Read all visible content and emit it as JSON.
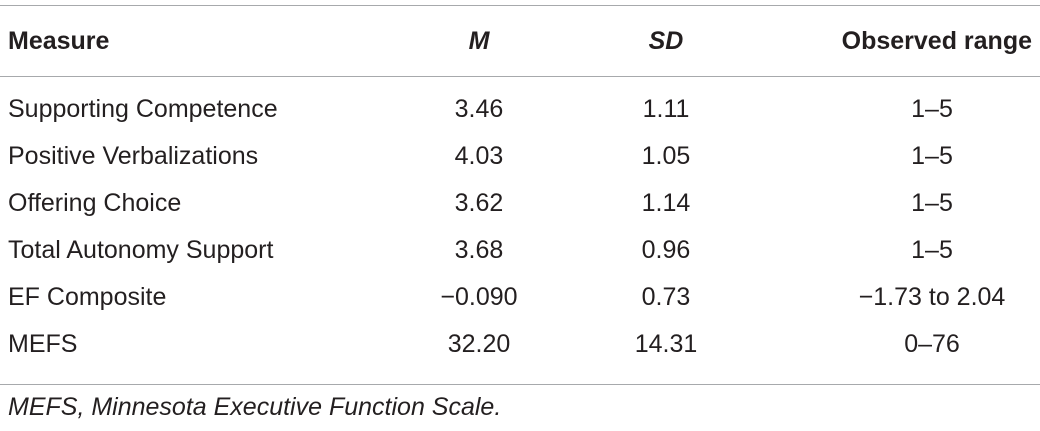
{
  "table": {
    "headers": {
      "measure": "Measure",
      "m": "M",
      "sd": "SD",
      "range": "Observed range"
    },
    "rows": [
      {
        "measure": "Supporting Competence",
        "m": "3.46",
        "sd": "1.11",
        "range": "1–5"
      },
      {
        "measure": "Positive Verbalizations",
        "m": "4.03",
        "sd": "1.05",
        "range": "1–5"
      },
      {
        "measure": "Offering Choice",
        "m": "3.62",
        "sd": "1.14",
        "range": "1–5"
      },
      {
        "measure": "Total Autonomy Support",
        "m": "3.68",
        "sd": "0.96",
        "range": "1–5"
      },
      {
        "measure": "EF Composite",
        "m": "−0.090",
        "sd": "0.73",
        "range": "−1.73 to 2.04"
      },
      {
        "measure": "MEFS",
        "m": "32.20",
        "sd": "14.31",
        "range": "0–76"
      }
    ]
  },
  "footnote": "MEFS, Minnesota Executive Function Scale."
}
